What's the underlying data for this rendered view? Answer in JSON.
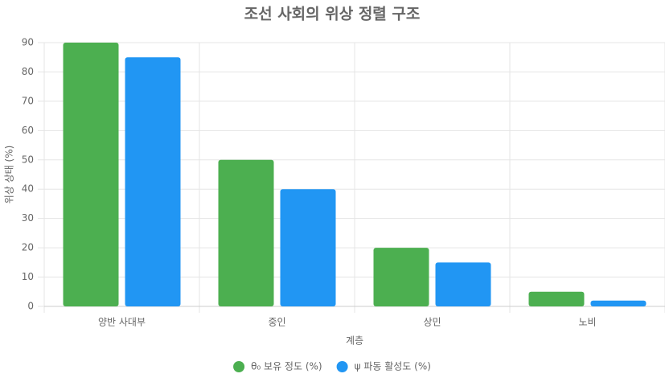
{
  "chart_data": {
    "type": "bar",
    "title": "조선 사회의 위상 정렬 구조",
    "x_label": "계층",
    "y_label": "위상 상태 (%)",
    "categories": [
      "양반 사대부",
      "중인",
      "상민",
      "노비"
    ],
    "series": [
      {
        "name": "θ₀ 보유 정도 (%)",
        "color": "#4caf50",
        "values": [
          90,
          50,
          20,
          5
        ]
      },
      {
        "name": "ψ 파동 활성도 (%)",
        "color": "#2196f3",
        "values": [
          85,
          40,
          15,
          2
        ]
      }
    ],
    "ylim": [
      0,
      90
    ],
    "yticks": [
      0,
      10,
      20,
      30,
      40,
      50,
      60,
      70,
      80,
      90
    ],
    "grid": true,
    "legend": "bottom"
  }
}
